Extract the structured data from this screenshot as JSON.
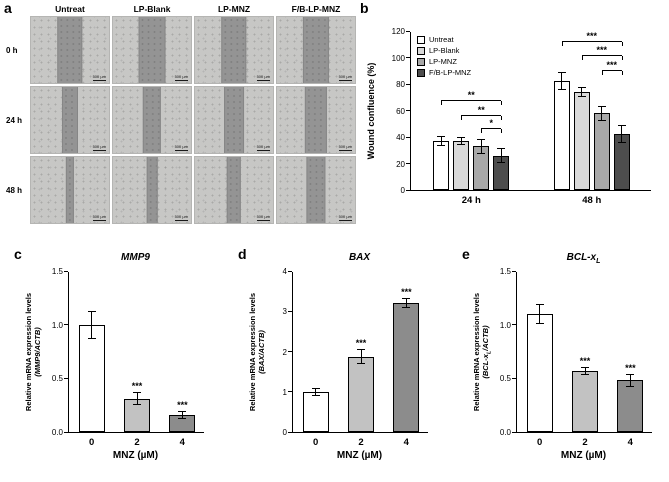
{
  "panels": {
    "a_label": "a",
    "b_label": "b",
    "c_label": "c",
    "d_label": "d",
    "e_label": "e"
  },
  "panel_a": {
    "columns": [
      "Untreat",
      "LP-Blank",
      "LP-MNZ",
      "F/B-LP-MNZ"
    ],
    "rows": [
      "0 h",
      "24 h",
      "48 h"
    ],
    "scale_bar_label": "500 µm",
    "scratch_width_pct": [
      [
        30,
        32,
        30,
        31
      ],
      [
        18,
        21,
        23,
        26
      ],
      [
        8,
        11,
        16,
        22
      ]
    ]
  },
  "chart_data": [
    {
      "id": "b",
      "type": "bar",
      "ylabel": "Wound confluence (%)",
      "ylim": [
        0,
        120
      ],
      "yticks": [
        0,
        20,
        40,
        60,
        80,
        100,
        120
      ],
      "categories": [
        "24 h",
        "48 h"
      ],
      "legend_position": "top-left",
      "series": [
        {
          "name": "Untreat",
          "color": "#ffffff",
          "values": [
            37,
            82
          ],
          "errors": [
            3,
            6
          ]
        },
        {
          "name": "LP-Blank",
          "color": "#d9d9d9",
          "values": [
            37,
            74
          ],
          "errors": [
            2,
            3
          ]
        },
        {
          "name": "LP-MNZ",
          "color": "#a8a8a8",
          "values": [
            33,
            58
          ],
          "errors": [
            5,
            5
          ]
        },
        {
          "name": "F/B-LP-MNZ",
          "color": "#4d4d4d",
          "values": [
            26,
            42
          ],
          "errors": [
            5,
            6
          ]
        }
      ],
      "annotations": [
        {
          "category": 0,
          "from": 0,
          "to": 3,
          "y": 67,
          "label": "**"
        },
        {
          "category": 0,
          "from": 1,
          "to": 3,
          "y": 56,
          "label": "**"
        },
        {
          "category": 0,
          "from": 2,
          "to": 3,
          "y": 46,
          "label": "*"
        },
        {
          "category": 1,
          "from": 0,
          "to": 3,
          "y": 112,
          "label": "***"
        },
        {
          "category": 1,
          "from": 1,
          "to": 3,
          "y": 101,
          "label": "***"
        },
        {
          "category": 1,
          "from": 2,
          "to": 3,
          "y": 90,
          "label": "***"
        }
      ]
    },
    {
      "id": "c",
      "type": "bar",
      "title": "MMP9",
      "ylabel_line1": "Relative mRNA expression levels",
      "ylabel_line2": "(MMP9/ACTB)",
      "xlabel": "MNZ (µM)",
      "ylim": [
        0,
        1.5
      ],
      "yticks": [
        0,
        0.5,
        1,
        1.5
      ],
      "ytick_labels": [
        "0.0",
        "0.5",
        "1.0",
        "1.5"
      ],
      "categories": [
        "0",
        "2",
        "4"
      ],
      "values": [
        1.0,
        0.31,
        0.16
      ],
      "errors": [
        0.12,
        0.05,
        0.03
      ],
      "bar_colors": [
        "#ffffff",
        "#c2c2c2",
        "#8c8c8c"
      ],
      "sig_labels": [
        "",
        "***",
        "***"
      ]
    },
    {
      "id": "d",
      "type": "bar",
      "title": "BAX",
      "ylabel_line1": "Relative mRNA expression levels",
      "ylabel_line2": "(BAX/ACTB)",
      "xlabel": "MNZ (µM)",
      "ylim": [
        0,
        4
      ],
      "yticks": [
        0,
        1,
        2,
        3,
        4
      ],
      "ytick_labels": [
        "0",
        "1",
        "2",
        "3",
        "4"
      ],
      "categories": [
        "0",
        "2",
        "4"
      ],
      "values": [
        1.0,
        1.87,
        3.2
      ],
      "errors": [
        0.08,
        0.16,
        0.1
      ],
      "bar_colors": [
        "#ffffff",
        "#c2c2c2",
        "#8c8c8c"
      ],
      "sig_labels": [
        "",
        "***",
        "***"
      ]
    },
    {
      "id": "e",
      "type": "bar",
      "title": "BCL-x",
      "title_sub": "L",
      "ylabel_line1": "Relative mRNA expression levels",
      "ylabel_line2_pre": "(BCL-x",
      "ylabel_line2_sub": "L",
      "ylabel_line2_post": "/ACTB)",
      "xlabel": "MNZ (µM)",
      "ylim": [
        0,
        1.5
      ],
      "yticks": [
        0,
        0.5,
        1,
        1.5
      ],
      "ytick_labels": [
        "0.0",
        "0.5",
        "1.0",
        "1.5"
      ],
      "categories": [
        "0",
        "2",
        "4"
      ],
      "values": [
        1.1,
        0.57,
        0.48
      ],
      "errors": [
        0.08,
        0.03,
        0.05
      ],
      "bar_colors": [
        "#ffffff",
        "#c2c2c2",
        "#8c8c8c"
      ],
      "sig_labels": [
        "",
        "***",
        "***"
      ]
    }
  ]
}
